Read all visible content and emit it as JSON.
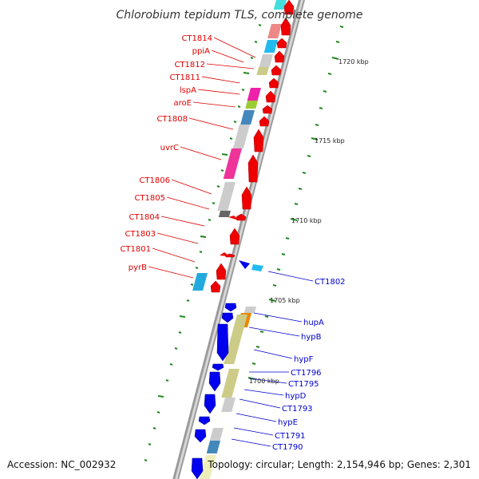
{
  "title": "Chlorobium tepidum TLS, complete genome",
  "footer": {
    "accession": "Accession: NC_002932",
    "topology": "Topology: circular; Length: 2,154,946 bp; Genes: 2,301"
  },
  "scale_labels": [
    "1720 kbp",
    "1715 kbp",
    "1710 kbp",
    "1705 kbp",
    "1700 kbp"
  ],
  "colors": {
    "forward_strand": "#ee0000",
    "reverse_strand": "#0000ee",
    "backbone": "#888888",
    "tick": "#228822",
    "label_forward": "#dd0000",
    "label_reverse": "#0000cc"
  },
  "forward_labels": [
    "CT1814",
    "ppiA",
    "CT1812",
    "CT1811",
    "lspA",
    "aroE",
    "CT1808",
    "uvrC",
    "CT1806",
    "CT1805",
    "CT1804",
    "CT1803",
    "CT1801",
    "pyrB"
  ],
  "reverse_labels": [
    "CT1802",
    "hupA",
    "hypB",
    "hypF",
    "CT1796",
    "CT1795",
    "hypD",
    "CT1793",
    "hypE",
    "CT1791",
    "CT1790"
  ]
}
